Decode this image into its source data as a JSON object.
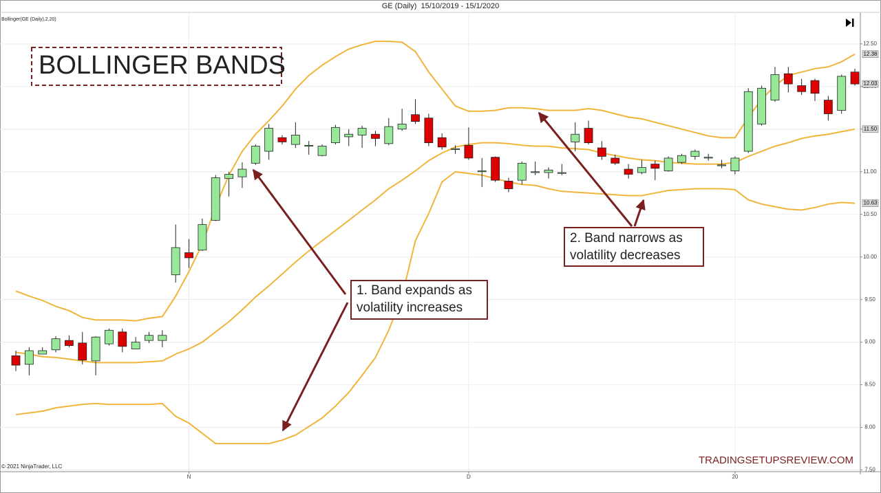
{
  "title": "GE (Daily)  15/10/2019 - 15/1/2020",
  "indicator": "Bollinger(GE (Daily),2,20)",
  "heading": "BOLLINGER BANDS",
  "copyright": "© 2021 NinjaTrader, LLC",
  "watermark": "TRADINGSETUPSREVIEW.COM",
  "annotations": [
    {
      "lines": [
        "1. Band expands as",
        "volatility increases"
      ]
    },
    {
      "lines": [
        "2. Band narrows as",
        "volatility decreases"
      ]
    }
  ],
  "chart_data": {
    "type": "candlestick",
    "up_color": "#98e89a",
    "down_color": "#dd0000",
    "band_color": "#f0b43a",
    "grid": true,
    "categories": [
      null,
      null,
      null,
      null,
      null,
      null,
      null,
      null,
      null,
      null,
      null,
      null,
      null,
      "N",
      null,
      null,
      null,
      null,
      null,
      null,
      null,
      null,
      null,
      null,
      null,
      null,
      null,
      null,
      null,
      null,
      null,
      null,
      null,
      null,
      "D",
      null,
      null,
      null,
      null,
      null,
      null,
      null,
      null,
      null,
      null,
      null,
      null,
      null,
      null,
      null,
      null,
      null,
      null,
      null,
      "20",
      null,
      null,
      null,
      null,
      null,
      null,
      null,
      null,
      null
    ],
    "open": [
      8.84,
      8.74,
      8.86,
      8.91,
      9.02,
      8.99,
      8.78,
      8.98,
      9.12,
      8.92,
      9.02,
      9.02,
      9.79,
      10.05,
      10.08,
      10.43,
      10.92,
      10.94,
      11.1,
      11.24,
      11.4,
      11.32,
      11.3,
      11.19,
      11.34,
      11.41,
      11.43,
      11.44,
      11.33,
      11.5,
      11.67,
      11.63,
      11.4,
      11.26,
      11.31,
      11.0,
      11.17,
      10.89,
      10.9,
      10.99,
      10.99,
      10.98,
      11.35,
      11.51,
      11.28,
      11.16,
      11.03,
      10.99,
      11.09,
      11.01,
      11.11,
      11.18,
      11.16,
      11.07,
      11.01,
      11.24,
      11.56,
      11.84,
      12.15,
      12.01,
      12.07,
      11.84,
      11.72,
      12.17
    ],
    "high": [
      8.9,
      8.94,
      8.94,
      9.07,
      9.08,
      9.12,
      9.07,
      9.16,
      9.16,
      9.06,
      9.12,
      9.14,
      10.38,
      10.21,
      10.45,
      10.96,
      11.0,
      11.11,
      11.32,
      11.56,
      11.43,
      11.58,
      11.36,
      11.32,
      11.55,
      11.5,
      11.54,
      11.48,
      11.63,
      11.74,
      11.85,
      11.68,
      11.45,
      11.31,
      11.52,
      11.16,
      11.18,
      10.93,
      11.12,
      11.12,
      11.05,
      11.09,
      11.58,
      11.6,
      11.36,
      11.2,
      11.09,
      11.14,
      11.13,
      11.18,
      11.21,
      11.26,
      11.21,
      11.14,
      11.18,
      11.98,
      12.01,
      12.23,
      12.23,
      12.09,
      12.09,
      11.89,
      12.14,
      12.21
    ],
    "low": [
      8.66,
      8.61,
      8.86,
      8.88,
      8.94,
      8.74,
      8.61,
      8.96,
      8.88,
      8.92,
      8.99,
      8.94,
      9.7,
      9.87,
      10.07,
      10.42,
      10.71,
      10.81,
      11.08,
      11.14,
      11.32,
      11.28,
      11.2,
      11.18,
      11.32,
      11.3,
      11.28,
      11.3,
      11.31,
      11.48,
      11.56,
      11.3,
      11.26,
      11.21,
      11.14,
      10.82,
      10.88,
      10.76,
      10.85,
      10.96,
      10.92,
      10.96,
      11.24,
      11.32,
      11.14,
      11.08,
      10.92,
      10.97,
      10.9,
      11.0,
      11.09,
      11.14,
      11.13,
      11.04,
      10.97,
      11.22,
      11.54,
      11.82,
      11.93,
      11.9,
      11.83,
      11.6,
      11.68,
      12.01
    ],
    "close": [
      8.73,
      8.9,
      8.9,
      9.04,
      8.96,
      8.79,
      9.06,
      9.14,
      8.95,
      9.0,
      9.08,
      9.08,
      10.11,
      9.99,
      10.38,
      10.93,
      10.97,
      11.03,
      11.3,
      11.51,
      11.35,
      11.43,
      11.31,
      11.3,
      11.52,
      11.44,
      11.51,
      11.39,
      11.53,
      11.56,
      11.59,
      11.34,
      11.29,
      11.27,
      11.16,
      11.01,
      10.9,
      10.8,
      11.1,
      11.0,
      11.02,
      10.99,
      11.44,
      11.34,
      11.18,
      11.1,
      10.97,
      11.05,
      11.04,
      11.16,
      11.19,
      11.24,
      11.17,
      11.08,
      11.16,
      11.94,
      11.98,
      12.14,
      12.03,
      11.94,
      11.92,
      11.68,
      12.12,
      12.03
    ],
    "bands": {
      "upper": [
        9.6,
        9.54,
        9.49,
        9.42,
        9.37,
        9.29,
        9.26,
        9.26,
        9.26,
        9.25,
        9.28,
        9.3,
        9.54,
        9.83,
        10.15,
        10.59,
        10.96,
        11.24,
        11.44,
        11.6,
        11.77,
        11.97,
        12.13,
        12.25,
        12.35,
        12.44,
        12.49,
        12.53,
        12.53,
        12.52,
        12.41,
        12.17,
        11.97,
        11.77,
        11.71,
        11.71,
        11.72,
        11.75,
        11.75,
        11.74,
        11.72,
        11.72,
        11.72,
        11.74,
        11.72,
        11.68,
        11.64,
        11.62,
        11.58,
        11.54,
        11.5,
        11.46,
        11.42,
        11.4,
        11.4,
        11.64,
        11.85,
        12.01,
        12.13,
        12.17,
        12.21,
        12.23,
        12.29,
        12.38
      ],
      "middle": [
        8.88,
        8.86,
        8.83,
        8.82,
        8.8,
        8.78,
        8.76,
        8.76,
        8.76,
        8.76,
        8.77,
        8.78,
        8.86,
        8.92,
        9.0,
        9.12,
        9.24,
        9.38,
        9.53,
        9.66,
        9.8,
        9.94,
        10.07,
        10.19,
        10.31,
        10.43,
        10.55,
        10.67,
        10.8,
        10.9,
        11.01,
        11.13,
        11.22,
        11.29,
        11.32,
        11.34,
        11.34,
        11.33,
        11.31,
        11.3,
        11.3,
        11.28,
        11.27,
        11.26,
        11.22,
        11.19,
        11.16,
        11.14,
        11.13,
        11.11,
        11.1,
        11.09,
        11.09,
        11.09,
        11.11,
        11.18,
        11.24,
        11.3,
        11.34,
        11.39,
        11.42,
        11.44,
        11.47,
        11.5
      ],
      "lower": [
        8.15,
        8.17,
        8.19,
        8.23,
        8.25,
        8.27,
        8.28,
        8.27,
        8.27,
        8.27,
        8.27,
        8.28,
        8.13,
        8.05,
        7.93,
        7.81,
        7.81,
        7.81,
        7.81,
        7.81,
        7.85,
        7.91,
        8.01,
        8.11,
        8.25,
        8.41,
        8.61,
        8.82,
        9.14,
        9.54,
        10.19,
        10.51,
        10.88,
        11.0,
        10.98,
        10.96,
        10.92,
        10.88,
        10.85,
        10.84,
        10.8,
        10.77,
        10.76,
        10.75,
        10.74,
        10.73,
        10.72,
        10.72,
        10.75,
        10.78,
        10.79,
        10.8,
        10.8,
        10.8,
        10.79,
        10.67,
        10.62,
        10.59,
        10.56,
        10.55,
        10.58,
        10.62,
        10.64,
        10.63
      ]
    },
    "price_tags": [
      {
        "value": 12.38,
        "label": "12.38"
      },
      {
        "value": 12.03,
        "label": "12.03"
      },
      {
        "value": 11.5,
        "label": "11.50"
      },
      {
        "value": 10.63,
        "label": "10.63"
      }
    ],
    "ylim": [
      7.48,
      12.87
    ],
    "yticks": [
      {
        "value": 7.5,
        "label": "7.50"
      },
      {
        "value": 8,
        "label": "8.00"
      },
      {
        "value": 8.5,
        "label": "8.50"
      },
      {
        "value": 9,
        "label": "9.00"
      },
      {
        "value": 9.5,
        "label": "9.50"
      },
      {
        "value": 10,
        "label": "10.00"
      },
      {
        "value": 10.5,
        "label": "10.50"
      },
      {
        "value": 11,
        "label": "11.00"
      },
      {
        "value": 11.5,
        "label": "11.50"
      },
      {
        "value": 12,
        "label": "12.00"
      },
      {
        "value": 12.5,
        "label": "12.50"
      }
    ]
  }
}
